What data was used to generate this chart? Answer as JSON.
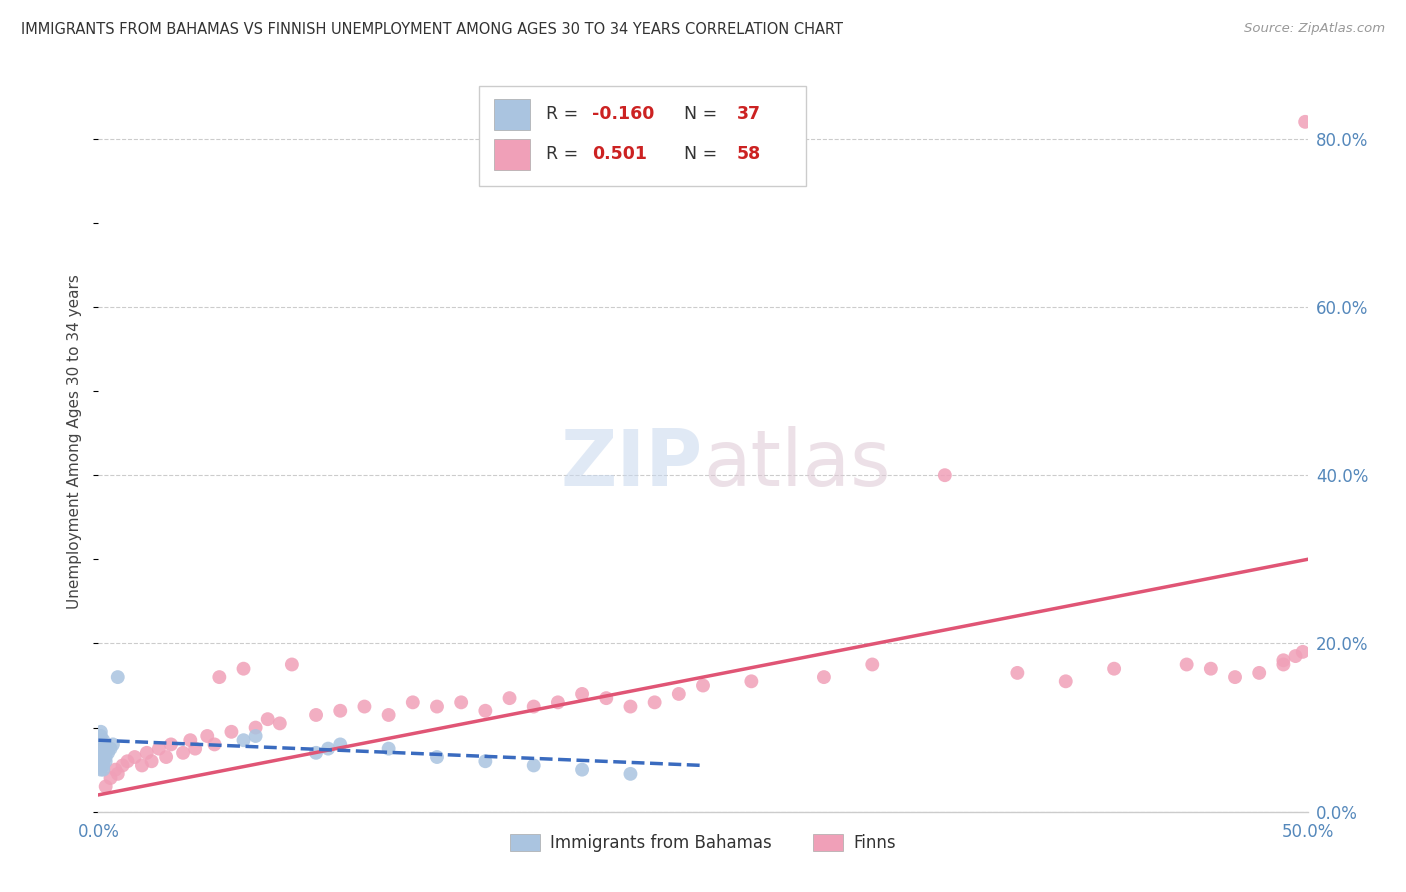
{
  "title": "IMMIGRANTS FROM BAHAMAS VS FINNISH UNEMPLOYMENT AMONG AGES 30 TO 34 YEARS CORRELATION CHART",
  "source": "Source: ZipAtlas.com",
  "ylabel": "Unemployment Among Ages 30 to 34 years",
  "series1_label": "Immigrants from Bahamas",
  "series1_R": -0.16,
  "series1_N": 37,
  "series1_color": "#aac4e0",
  "series1_line_color": "#3a6bbf",
  "series2_label": "Finns",
  "series2_R": 0.501,
  "series2_N": 58,
  "series2_color": "#f0a0b8",
  "series2_line_color": "#e05575",
  "bg_color": "#ffffff",
  "grid_color": "#cccccc",
  "title_color": "#333333",
  "right_axis_color": "#5588bb",
  "xlim": [
    0.0,
    0.5
  ],
  "ylim": [
    0.0,
    0.88
  ],
  "right_yticks": [
    0.0,
    0.2,
    0.4,
    0.6,
    0.8
  ],
  "right_ytick_labels": [
    "0.0%",
    "20.0%",
    "40.0%",
    "60.0%",
    "80.0%"
  ],
  "bahamas_x": [
    0.001,
    0.001,
    0.001,
    0.001,
    0.001,
    0.001,
    0.001,
    0.001,
    0.001,
    0.001,
    0.002,
    0.002,
    0.002,
    0.002,
    0.002,
    0.002,
    0.002,
    0.002,
    0.003,
    0.003,
    0.003,
    0.003,
    0.004,
    0.005,
    0.006,
    0.008,
    0.06,
    0.065,
    0.09,
    0.095,
    0.1,
    0.12,
    0.14,
    0.16,
    0.18,
    0.2,
    0.22
  ],
  "bahamas_y": [
    0.05,
    0.055,
    0.06,
    0.065,
    0.07,
    0.075,
    0.08,
    0.085,
    0.09,
    0.095,
    0.05,
    0.055,
    0.06,
    0.065,
    0.07,
    0.075,
    0.08,
    0.085,
    0.06,
    0.065,
    0.07,
    0.075,
    0.07,
    0.075,
    0.08,
    0.16,
    0.085,
    0.09,
    0.07,
    0.075,
    0.08,
    0.075,
    0.065,
    0.06,
    0.055,
    0.05,
    0.045
  ],
  "finns_x": [
    0.003,
    0.005,
    0.007,
    0.008,
    0.01,
    0.012,
    0.015,
    0.018,
    0.02,
    0.022,
    0.025,
    0.028,
    0.03,
    0.035,
    0.038,
    0.04,
    0.045,
    0.048,
    0.05,
    0.055,
    0.06,
    0.065,
    0.07,
    0.075,
    0.08,
    0.09,
    0.1,
    0.11,
    0.12,
    0.13,
    0.14,
    0.15,
    0.16,
    0.17,
    0.18,
    0.19,
    0.2,
    0.21,
    0.22,
    0.23,
    0.24,
    0.25,
    0.27,
    0.3,
    0.32,
    0.35,
    0.38,
    0.4,
    0.42,
    0.45,
    0.46,
    0.47,
    0.48,
    0.49,
    0.49,
    0.495,
    0.498,
    0.499
  ],
  "finns_y": [
    0.03,
    0.04,
    0.05,
    0.045,
    0.055,
    0.06,
    0.065,
    0.055,
    0.07,
    0.06,
    0.075,
    0.065,
    0.08,
    0.07,
    0.085,
    0.075,
    0.09,
    0.08,
    0.16,
    0.095,
    0.17,
    0.1,
    0.11,
    0.105,
    0.175,
    0.115,
    0.12,
    0.125,
    0.115,
    0.13,
    0.125,
    0.13,
    0.12,
    0.135,
    0.125,
    0.13,
    0.14,
    0.135,
    0.125,
    0.13,
    0.14,
    0.15,
    0.155,
    0.16,
    0.175,
    0.4,
    0.165,
    0.155,
    0.17,
    0.175,
    0.17,
    0.16,
    0.165,
    0.18,
    0.175,
    0.185,
    0.19,
    0.82
  ]
}
